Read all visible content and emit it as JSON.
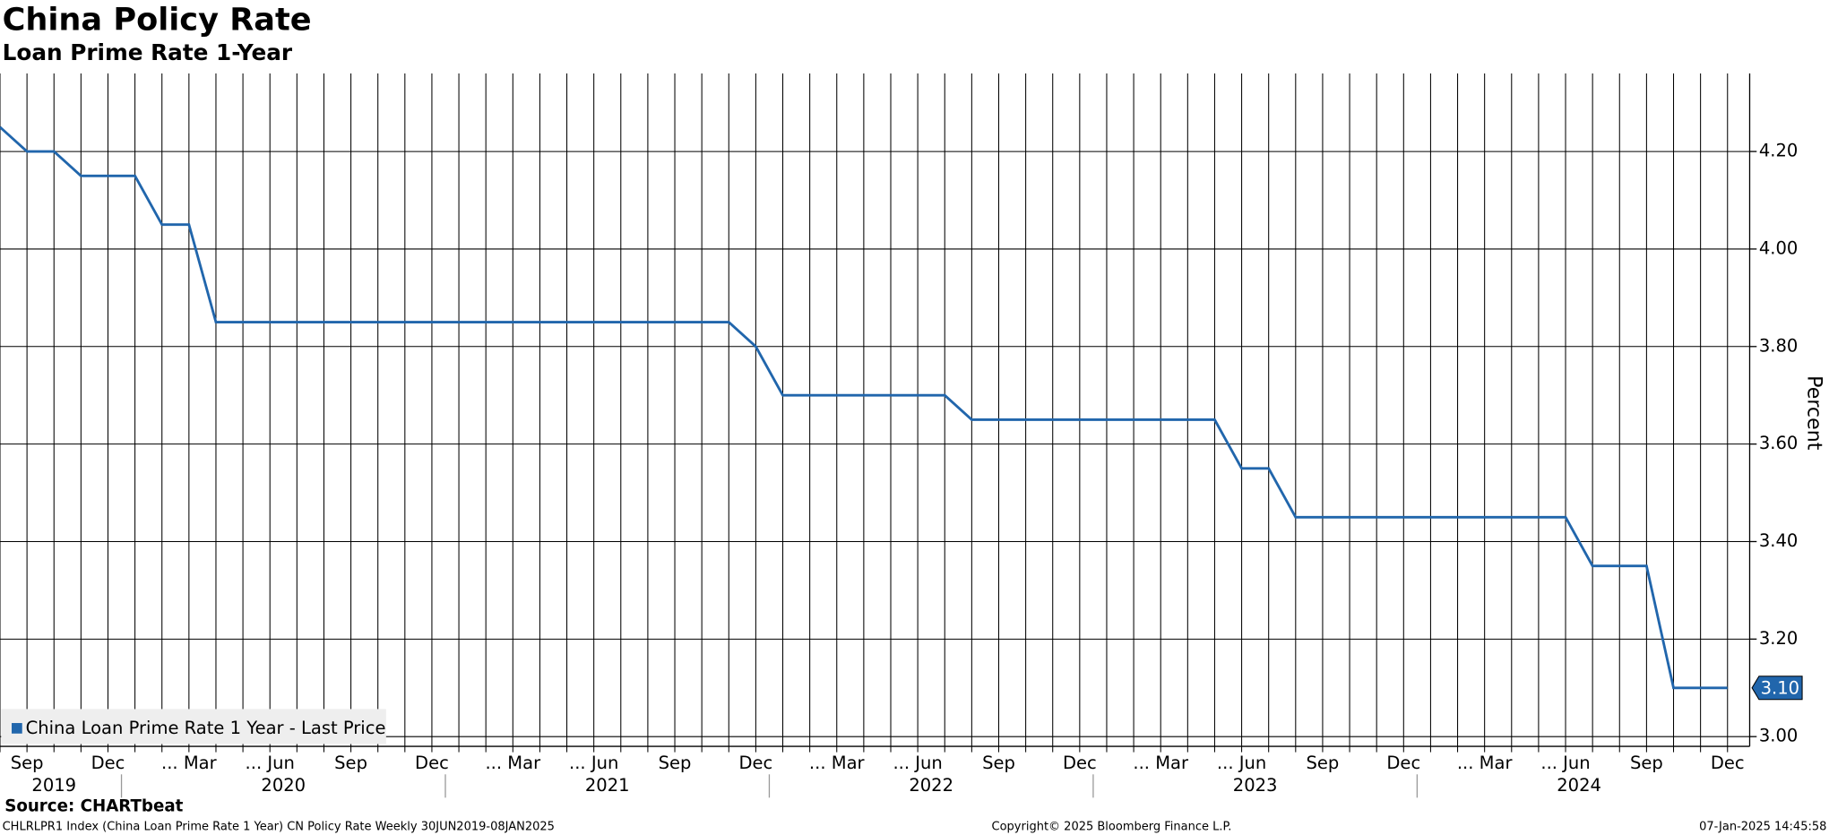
{
  "chart_data": {
    "type": "line",
    "title": "China Policy Rate",
    "subtitle": "Loan Prime Rate 1-Year",
    "categories": [
      null,
      "Sep",
      null,
      null,
      "Dec",
      null,
      null,
      "... Mar",
      null,
      null,
      "... Jun",
      null,
      null,
      "Sep",
      null,
      null,
      "Dec",
      null,
      null,
      "... Mar",
      null,
      null,
      "... Jun",
      null,
      null,
      "Sep",
      null,
      null,
      "Dec",
      null,
      null,
      "... Mar",
      null,
      null,
      "... Jun",
      null,
      null,
      "Sep",
      null,
      null,
      "Dec",
      null,
      null,
      "... Mar",
      null,
      null,
      "... Jun",
      null,
      null,
      "Sep",
      null,
      null,
      "Dec",
      null,
      null,
      "... Mar",
      null,
      null,
      "... Jun",
      null,
      null,
      "Sep",
      null,
      null,
      "Dec"
    ],
    "years": [
      "2019",
      "2020",
      "2021",
      "2022",
      "2023",
      "2024"
    ],
    "series": [
      {
        "name": "China Loan Prime Rate 1 Year - Last Price",
        "color": "#2166ac",
        "values": [
          4.25,
          4.2,
          4.2,
          4.15,
          4.15,
          4.15,
          4.05,
          4.05,
          3.85,
          3.85,
          3.85,
          3.85,
          3.85,
          3.85,
          3.85,
          3.85,
          3.85,
          3.85,
          3.85,
          3.85,
          3.85,
          3.85,
          3.85,
          3.85,
          3.85,
          3.85,
          3.85,
          3.85,
          3.8,
          3.7,
          3.7,
          3.7,
          3.7,
          3.7,
          3.7,
          3.7,
          3.65,
          3.65,
          3.65,
          3.65,
          3.65,
          3.65,
          3.65,
          3.65,
          3.65,
          3.65,
          3.55,
          3.55,
          3.45,
          3.45,
          3.45,
          3.45,
          3.45,
          3.45,
          3.45,
          3.45,
          3.45,
          3.45,
          3.45,
          3.35,
          3.35,
          3.35,
          3.1,
          3.1,
          3.1
        ],
        "last_value": 3.1,
        "last_value_label": "3.10"
      }
    ],
    "ylim": [
      2.98,
      4.36
    ],
    "yticks": [
      {
        "value": 3,
        "label": "3.00"
      },
      {
        "value": 3.2,
        "label": "3.20"
      },
      {
        "value": 3.4,
        "label": "3.40"
      },
      {
        "value": 3.6,
        "label": "3.60"
      },
      {
        "value": 3.8,
        "label": "3.80"
      },
      {
        "value": 4,
        "label": "4.00"
      },
      {
        "value": 4.2,
        "label": "4.20"
      }
    ],
    "y_axis_label": "Percent",
    "grid": true,
    "legend": "bottom-left",
    "source": "Source: CHARTbeat",
    "footer_left": "CHLRLPR1 Index (China Loan Prime Rate 1 Year) CN Policy Rate  Weekly 30JUN2019-08JAN2025",
    "footer_center": "Copyright© 2025 Bloomberg Finance L.P.",
    "footer_right": "07-Jan-2025 14:45:58"
  }
}
